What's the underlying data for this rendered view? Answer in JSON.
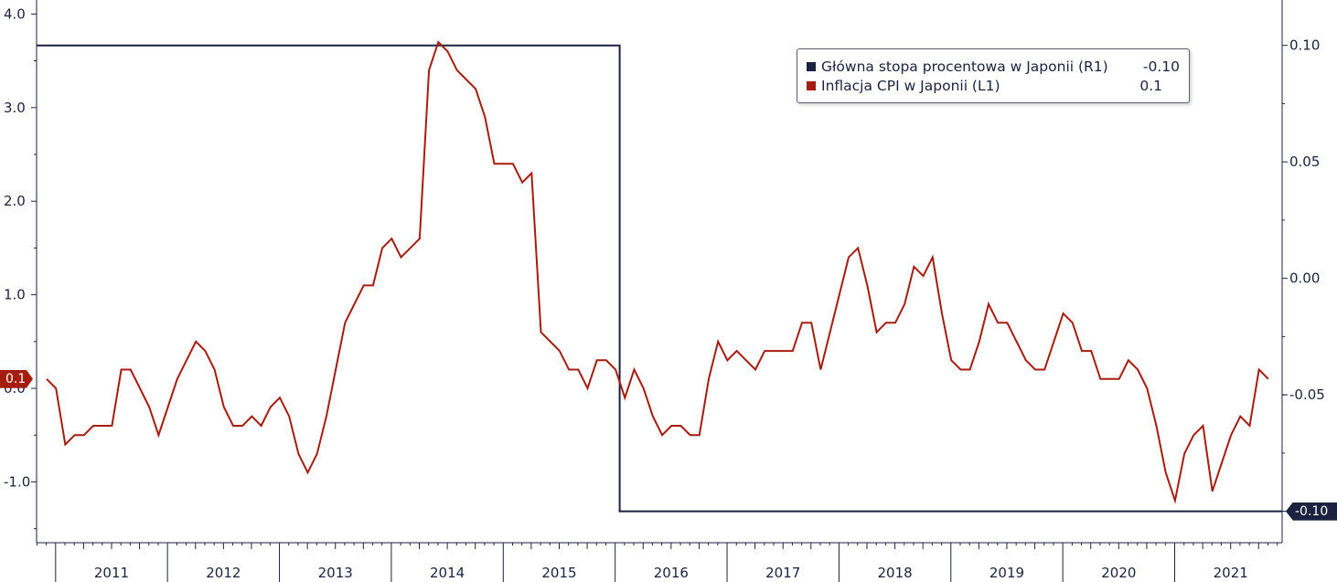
{
  "chart_data": {
    "type": "line",
    "title": "",
    "xlabel": "",
    "ylabel": "",
    "left_axis": {
      "ticks": [
        "4.0",
        "3.0",
        "2.0",
        "1.0",
        "0.0",
        "-1.0"
      ],
      "values": [
        4,
        3,
        2,
        1,
        0,
        -1
      ],
      "ylim": [
        -1.65,
        4.15
      ]
    },
    "right_axis": {
      "ticks": [
        "0.10",
        "0.05",
        "0.00",
        "-0.05",
        "-0.10"
      ],
      "values": [
        0.1,
        0.05,
        0.0,
        -0.05,
        -0.1
      ],
      "ylim": [
        -0.1135,
        0.1195
      ]
    },
    "x_ticks": [
      "2011",
      "2012",
      "2013",
      "2014",
      "2015",
      "2016",
      "2017",
      "2018",
      "2019",
      "2020",
      "2021"
    ],
    "x_range": [
      2010.83,
      2021.96
    ],
    "grid": false,
    "legend_position": "top-right",
    "series": [
      {
        "name": "Główna stopa procentowa w Japonii (R1)",
        "axis": "right",
        "color": "#1b2240",
        "last_value": "-0.10",
        "x": [
          2010.83,
          2016.04,
          2016.04,
          2021.96
        ],
        "values": [
          0.1,
          0.1,
          -0.1,
          -0.1
        ]
      },
      {
        "name": "Inflacja CPI w Japonii (L1)",
        "axis": "left",
        "color": "#a51c10",
        "last_value": "0.1",
        "start": 2010.92,
        "step": 0.0833333,
        "values": [
          0.1,
          0.0,
          -0.6,
          -0.5,
          -0.5,
          -0.4,
          -0.4,
          -0.4,
          0.2,
          0.2,
          0.0,
          -0.2,
          -0.5,
          -0.2,
          0.1,
          0.3,
          0.5,
          0.4,
          0.2,
          -0.2,
          -0.4,
          -0.4,
          -0.3,
          -0.4,
          -0.2,
          -0.1,
          -0.3,
          -0.7,
          -0.9,
          -0.7,
          -0.3,
          0.2,
          0.7,
          0.9,
          1.1,
          1.1,
          1.5,
          1.6,
          1.4,
          1.5,
          1.6,
          3.4,
          3.7,
          3.6,
          3.4,
          3.3,
          3.2,
          2.9,
          2.4,
          2.4,
          2.4,
          2.2,
          2.3,
          0.6,
          0.5,
          0.4,
          0.2,
          0.2,
          0.0,
          0.3,
          0.3,
          0.2,
          -0.1,
          0.2,
          0.0,
          -0.3,
          -0.5,
          -0.4,
          -0.4,
          -0.5,
          -0.5,
          0.1,
          0.5,
          0.3,
          0.4,
          0.3,
          0.2,
          0.4,
          0.4,
          0.4,
          0.4,
          0.7,
          0.7,
          0.2,
          0.6,
          1.0,
          1.4,
          1.5,
          1.1,
          0.6,
          0.7,
          0.7,
          0.9,
          1.3,
          1.2,
          1.4,
          0.8,
          0.3,
          0.2,
          0.2,
          0.5,
          0.9,
          0.7,
          0.7,
          0.5,
          0.3,
          0.2,
          0.2,
          0.5,
          0.8,
          0.7,
          0.4,
          0.4,
          0.1,
          0.1,
          0.1,
          0.3,
          0.2,
          0.0,
          -0.4,
          -0.9,
          -1.2,
          -0.7,
          -0.5,
          -0.4,
          -1.1,
          -0.8,
          -0.5,
          -0.3,
          -0.4,
          0.2,
          0.1
        ]
      }
    ]
  },
  "legend": {
    "rows": [
      {
        "label": "Główna stopa procentowa w Japonii (R1)",
        "value": "-0.10",
        "color": "#1b2240"
      },
      {
        "label": "Inflacja CPI w Japonii (L1)",
        "value": "0.1",
        "color": "#a51c10"
      }
    ]
  },
  "tags": {
    "left": {
      "text": "0.1",
      "color": "#a51c10"
    },
    "right": {
      "text": "-0.10",
      "color": "#1b2240"
    }
  }
}
